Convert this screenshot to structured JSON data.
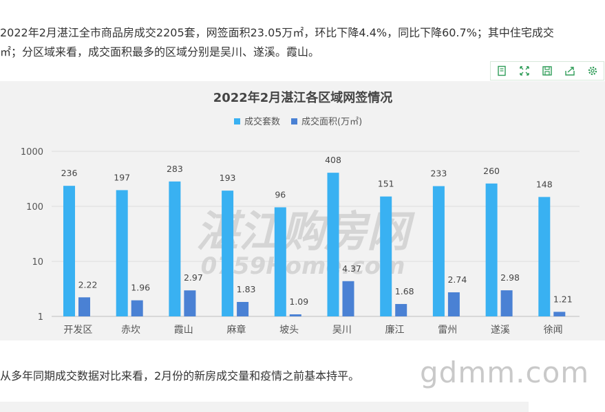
{
  "article": {
    "para1_line1": "2022年2月湛江全市商品房成交2205套，网签面积23.05万㎡，环比下降4.4%，同比下降60.7%；其中住宅成交",
    "para1_line2": "㎡；分区域来看，成交面积最多的区域分别是吴川、遂溪。霞山。",
    "para2": "从多年同期成交数据对比来看，2月份的新房成交量和疫情之前基本持平。"
  },
  "toolbar": {
    "icons": [
      "data-view-icon",
      "restore-icon",
      "save-image-icon",
      "export-icon",
      "settings-icon"
    ]
  },
  "watermark": {
    "text": "gdmm.com"
  },
  "chart_watermark": {
    "line1": "湛江购房网",
    "line2": "0759Home.com"
  },
  "chart_data": {
    "type": "bar",
    "title": "2022年2月湛江各区域网签情况",
    "categories": [
      "开发区",
      "赤坎",
      "霞山",
      "麻章",
      "坡头",
      "吴川",
      "廉江",
      "雷州",
      "遂溪",
      "徐闻"
    ],
    "series": [
      {
        "name": "成交套数",
        "color": "#39b1f2",
        "values": [
          236,
          197,
          283,
          193,
          96,
          408,
          151,
          233,
          260,
          148
        ]
      },
      {
        "name": "成交面积(万㎡)",
        "color": "#4a81d4",
        "values": [
          2.22,
          1.96,
          2.97,
          1.83,
          1.09,
          4.37,
          1.68,
          2.74,
          2.98,
          1.21
        ]
      }
    ],
    "yscale": "log",
    "ylim": [
      1,
      1000
    ],
    "yticks": [
      "1",
      "10",
      "100",
      "1000"
    ],
    "legend": "top-center",
    "grid": true
  }
}
